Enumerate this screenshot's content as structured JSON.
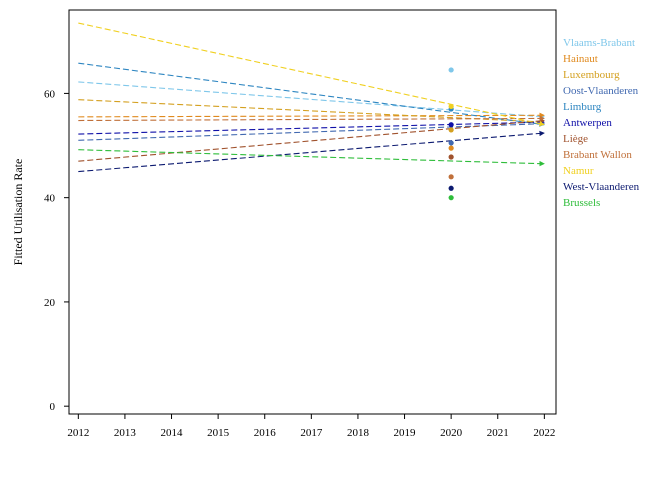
{
  "chart_data": {
    "type": "line",
    "title": "",
    "xlabel": "",
    "ylabel": "Fitted Utilisation Rate",
    "xlim": [
      2011.8,
      2022.25
    ],
    "ylim": [
      -1.5,
      76
    ],
    "x_ticks": [
      "2012",
      "2013",
      "2014",
      "2015",
      "2016",
      "2017",
      "2018",
      "2019",
      "2020",
      "2021",
      "2022"
    ],
    "y_ticks": [
      "0",
      "20",
      "40",
      "60"
    ],
    "grid": false,
    "legend_position": "right",
    "series": [
      {
        "name": "Vlaams-Brabant",
        "color": "#7FC7EA",
        "x": [
          2012,
          2022
        ],
        "y": [
          62.2,
          55.5
        ],
        "marker": {
          "x": 2020,
          "y": 64.5
        }
      },
      {
        "name": "Hainaut",
        "color": "#E08A1E",
        "x": [
          2012,
          2022
        ],
        "y": [
          55.5,
          55.8
        ],
        "marker": {
          "x": 2020,
          "y": 49.5
        }
      },
      {
        "name": "Luxembourg",
        "color": "#D4A020",
        "x": [
          2012,
          2022
        ],
        "y": [
          58.8,
          54.5
        ],
        "marker": {
          "x": 2020,
          "y": 53.0
        }
      },
      {
        "name": "Oost-Vlaanderen",
        "color": "#4169B0",
        "x": [
          2012,
          2022
        ],
        "y": [
          51.0,
          54.2
        ],
        "marker": {
          "x": 2020,
          "y": 50.5
        }
      },
      {
        "name": "Limburg",
        "color": "#2E86C1",
        "x": [
          2012,
          2022
        ],
        "y": [
          65.8,
          54.0
        ],
        "marker": {
          "x": 2020,
          "y": 57.0
        }
      },
      {
        "name": "Antwerpen",
        "color": "#1010A8",
        "x": [
          2012,
          2022
        ],
        "y": [
          52.2,
          54.5
        ],
        "marker": {
          "x": 2020,
          "y": 54.0
        }
      },
      {
        "name": "Liège",
        "color": "#A0522D",
        "x": [
          2012,
          2022
        ],
        "y": [
          47.0,
          54.8
        ],
        "marker": {
          "x": 2020,
          "y": 47.8
        }
      },
      {
        "name": "Brabant Wallon",
        "color": "#C0703A",
        "x": [
          2012,
          2022
        ],
        "y": [
          54.8,
          55.2
        ],
        "marker": {
          "x": 2020,
          "y": 44.0
        }
      },
      {
        "name": "Namur",
        "color": "#F0D020",
        "x": [
          2012,
          2022
        ],
        "y": [
          73.5,
          54.0
        ],
        "marker": {
          "x": 2020,
          "y": 57.5
        }
      },
      {
        "name": "West-Vlaanderen",
        "color": "#0C1A70",
        "x": [
          2012,
          2022
        ],
        "y": [
          45.0,
          52.4
        ],
        "marker": {
          "x": 2020,
          "y": 41.8
        }
      },
      {
        "name": "Brussels",
        "color": "#2EBD3A",
        "x": [
          2012,
          2022
        ],
        "y": [
          49.2,
          46.5
        ],
        "marker": {
          "x": 2020,
          "y": 40.0
        }
      }
    ]
  }
}
